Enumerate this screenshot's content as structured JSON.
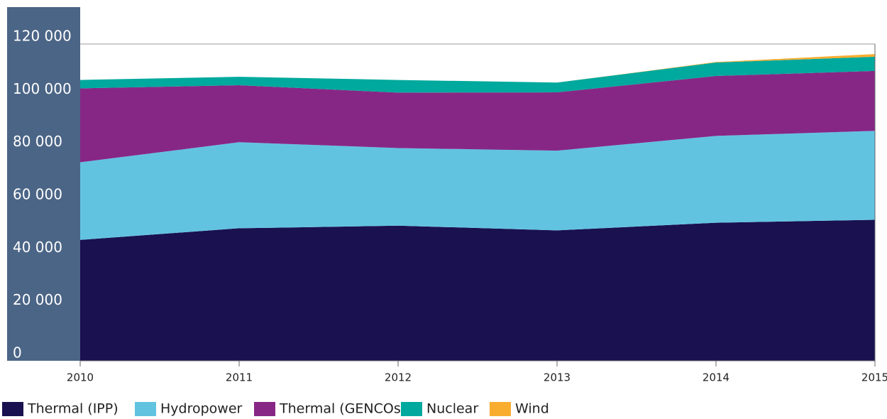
{
  "chart_data": {
    "type": "stacked_area",
    "categories": [
      "2010",
      "2011",
      "2012",
      "2013",
      "2014",
      "2015"
    ],
    "series": [
      {
        "name": "Thermal (IPP)",
        "color": "#1a1150",
        "values": [
          45800,
          50200,
          51200,
          49400,
          52300,
          53400
        ]
      },
      {
        "name": "Hydropower",
        "color": "#62c3e0",
        "values": [
          29400,
          32600,
          29400,
          30200,
          32900,
          33700
        ]
      },
      {
        "name": "Thermal (GENCOs)",
        "color": "#872785",
        "values": [
          28000,
          21600,
          21000,
          22100,
          22700,
          22700
        ]
      },
      {
        "name": "Nuclear",
        "color": "#00a99d",
        "values": [
          3200,
          3200,
          4800,
          3700,
          5100,
          5400
        ]
      },
      {
        "name": "Wind",
        "color": "#f9ad2f",
        "values": [
          0,
          0,
          0,
          0,
          200,
          1000
        ]
      }
    ],
    "ylim": [
      0,
      134000
    ],
    "yticks": [
      0,
      {
        "value": 20000,
        "label": "20 000"
      },
      {
        "value": 40000,
        "label": "40 000"
      },
      {
        "value": 60000,
        "label": "60 000"
      },
      {
        "value": 80000,
        "label": "80 000"
      },
      {
        "value": 100000,
        "label": "100 000"
      },
      {
        "value": 120000,
        "label": "120 000"
      }
    ],
    "grid": true
  }
}
